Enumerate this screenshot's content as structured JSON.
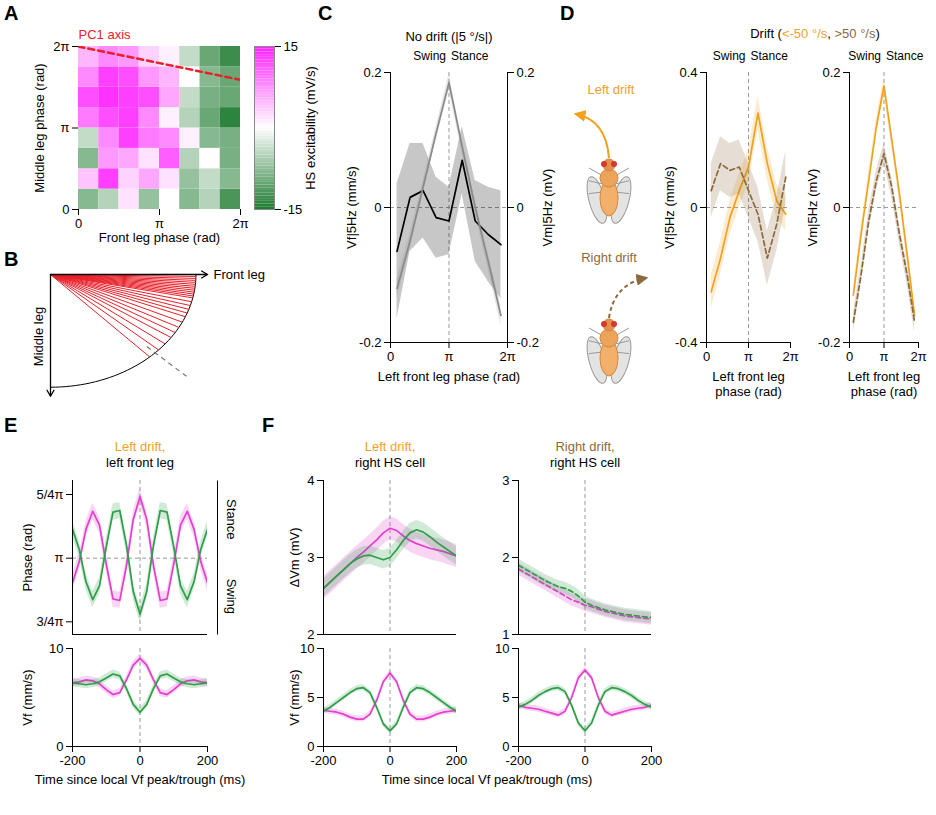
{
  "chart_data": [
    {
      "panel": "A",
      "type": "heatmap",
      "xlabel": "Front leg phase (rad)",
      "ylabel": "Middle leg phase (rad)",
      "xlim": [
        0,
        6.2832
      ],
      "ylim": [
        0,
        6.2832
      ],
      "xticks": [
        0,
        {
          "value": 3.1416,
          "label": "π"
        },
        {
          "value": 6.2832,
          "label": "2π"
        }
      ],
      "yticks": [
        0,
        {
          "value": 3.1416,
          "label": "π"
        },
        {
          "value": 6.2832,
          "label": "2π"
        }
      ],
      "cells": [
        [
          -8,
          -5,
          2,
          -7,
          0,
          -8,
          -5,
          -12
        ],
        [
          4,
          13,
          3,
          6,
          2,
          -7,
          -4,
          -8
        ],
        [
          -8,
          7,
          6,
          2,
          11,
          -5,
          0,
          -9
        ],
        [
          -4,
          8,
          13,
          9,
          8,
          1,
          -8,
          -9
        ],
        [
          9,
          12,
          13,
          8,
          1,
          -5,
          -10,
          -14
        ],
        [
          12,
          14,
          13,
          12,
          6,
          -4,
          -9,
          -10
        ],
        [
          8,
          13,
          12,
          7,
          5,
          0,
          -8,
          -10
        ],
        [
          5,
          8,
          7,
          3,
          1,
          -4,
          -10,
          -13
        ]
      ],
      "colorbar": {
        "label": "HS excitability (mV/s)",
        "range": [
          -15,
          15
        ],
        "ticks": [
          15,
          -15
        ],
        "colors": [
          "#1e7b30",
          "#ffffff",
          "#ff22ff"
        ]
      },
      "pc1_axis": {
        "label": "PC1 axis",
        "color": "#e8202a",
        "line_style": "dashed",
        "x": [
          0,
          6.2832
        ],
        "y": [
          6.2832,
          5.0
        ]
      }
    },
    {
      "panel": "B",
      "type": "radial",
      "xlabel": "Front leg",
      "ylabel": "Middle leg",
      "angles": [
        1,
        2,
        3,
        4,
        5,
        6,
        7,
        8,
        9,
        10,
        11,
        12,
        14,
        16,
        18,
        20,
        22,
        25,
        28,
        31,
        34,
        38,
        42,
        47
      ],
      "reference_angle": 44,
      "color": "#e8202a",
      "tick_labels": false
    },
    {
      "panel": "C",
      "type": "line",
      "title": "No drift (|5 °/s|)",
      "phase_labels": [
        "Swing",
        "Stance"
      ],
      "xlabel": "Left front leg phase (rad)",
      "ylabel": "Vf|5Hz (mm/s)",
      "y2label": "Vm|5Hz (mV)",
      "xlim": [
        0,
        6.2832
      ],
      "xticks": [
        0,
        {
          "value": 3.1416,
          "label": "π"
        },
        {
          "value": 6.2832,
          "label": "2π"
        }
      ],
      "ylim": [
        -0.2,
        0.2
      ],
      "yticks": [
        -0.2,
        0,
        0.2
      ],
      "y2lim": [
        -0.2,
        0.2
      ],
      "y2ticks": [
        -0.2,
        0,
        0.2
      ],
      "reference_lines": {
        "x": 3.1416,
        "y": 0
      },
      "x": [
        0.35,
        1.05,
        1.75,
        2.45,
        3.1416,
        3.85,
        4.55,
        5.25,
        5.93
      ],
      "series": [
        {
          "color": "#000000",
          "values": [
            -0.065,
            0.015,
            0.025,
            -0.015,
            -0.02,
            0.07,
            -0.02,
            -0.04,
            -0.055
          ],
          "error": [
            0.1,
            0.08,
            0.07,
            0.06,
            0.05,
            0.05,
            0.06,
            0.07,
            0.08
          ]
        },
        {
          "color": "#8a8a8a",
          "axis": "y2",
          "values": [
            -0.12,
            -0.05,
            0.03,
            0.11,
            0.185,
            0.09,
            0,
            -0.08,
            -0.16
          ],
          "error": [
            0.015,
            0.012,
            0.01,
            0.01,
            0.012,
            0.01,
            0.01,
            0.012,
            0.015
          ]
        }
      ]
    },
    {
      "panel": "D",
      "type": "line",
      "title_parts": [
        {
          "text": "Drift (",
          "color": "#000000"
        },
        {
          "text": "<-50 °/s",
          "color": "#f0a21e"
        },
        {
          "text": ", ",
          "color": "#000000"
        },
        {
          "text": ">50 °/s",
          "color": "#8b6a3c"
        },
        {
          "text": ")",
          "color": "#000000"
        }
      ],
      "phase_labels": [
        "Swing",
        "Stance"
      ],
      "xlabel": "Left front leg phase (rad)",
      "ylabel": "Vf|5Hz (mm/s)",
      "xlim": [
        0,
        6.2832
      ],
      "xticks": [
        0,
        {
          "value": 3.1416,
          "label": "π"
        },
        {
          "value": 6.2832,
          "label": "2π"
        }
      ],
      "ylim": [
        -0.4,
        0.4
      ],
      "yticks": [
        -0.4,
        0,
        0.4
      ],
      "reference_lines": {
        "x": 3.1416,
        "y": 0
      },
      "x": [
        0.35,
        1.05,
        1.75,
        2.45,
        3.1416,
        3.85,
        4.55,
        5.25,
        5.93
      ],
      "series": [
        {
          "name": "Left drift",
          "color": "#f0a21e",
          "values": [
            -0.25,
            -0.15,
            -0.03,
            0.05,
            0.12,
            0.28,
            0.13,
            0.02,
            -0.02
          ],
          "error": [
            0.05,
            0.05,
            0.05,
            0.05,
            0.05,
            0.05,
            0.05,
            0.05,
            0.05
          ]
        },
        {
          "name": "Right drift",
          "color": "#8b6a3c",
          "line_style": "dashed",
          "values": [
            0.05,
            0.13,
            0.11,
            0.12,
            0.05,
            -0.02,
            -0.15,
            -0.05,
            0.09
          ],
          "error": [
            0.08,
            0.08,
            0.08,
            0.08,
            0.08,
            0.08,
            0.08,
            0.08,
            0.08
          ]
        }
      ]
    },
    {
      "type": "line",
      "phase_labels": [
        "Swing",
        "Stance"
      ],
      "xlabel": "Left front leg phase (rad)",
      "ylabel": "Vm|5Hz (mV)",
      "xlim": [
        0,
        6.2832
      ],
      "xticks": [
        0,
        {
          "value": 3.1416,
          "label": "π"
        },
        {
          "value": 6.2832,
          "label": "2π"
        }
      ],
      "ylim": [
        -0.2,
        0.2
      ],
      "yticks": [
        -0.2,
        0,
        0.2
      ],
      "reference_lines": {
        "x": 3.1416,
        "y": 0
      },
      "x": [
        0.35,
        1.05,
        1.75,
        2.45,
        3.1416,
        3.85,
        4.55,
        5.25,
        5.93
      ],
      "series": [
        {
          "color": "#f0a21e",
          "values": [
            -0.13,
            -0.04,
            0.04,
            0.12,
            0.18,
            0.1,
            0.02,
            -0.07,
            -0.16
          ],
          "error": [
            0.012,
            0.012,
            0.012,
            0.012,
            0.012,
            0.012,
            0.012,
            0.012,
            0.012
          ]
        },
        {
          "color": "#8b6a3c",
          "line_style": "dashed",
          "values": [
            -0.17,
            -0.1,
            -0.02,
            0.04,
            0.08,
            0.03,
            -0.04,
            -0.1,
            -0.17
          ],
          "error": [
            0.015,
            0.015,
            0.015,
            0.015,
            0.015,
            0.015,
            0.015,
            0.015,
            0.015
          ]
        }
      ]
    },
    {
      "panel": "E",
      "type": "line",
      "title_parts": [
        {
          "text": "Left drift,",
          "color": "#f0a21e"
        },
        {
          "text": "left front leg",
          "color": "#000000"
        }
      ],
      "ylabel": "Phase (rad)",
      "bracket_labels": [
        "Stance",
        "Swing"
      ],
      "xlim": [
        -200,
        200
      ],
      "ylim": [
        2.2,
        4.1
      ],
      "yticks": [
        {
          "value": 2.3562,
          "label": "3/4π"
        },
        {
          "value": 3.1416,
          "label": "π"
        },
        {
          "value": 3.927,
          "label": "5/4π"
        }
      ],
      "tick_labels": "y",
      "reference_lines": {
        "x": 0,
        "y": 3.1416
      },
      "x": [
        -200,
        -180,
        -160,
        -140,
        -120,
        -100,
        -80,
        -60,
        -40,
        -20,
        0,
        20,
        40,
        60,
        80,
        100,
        120,
        140,
        160,
        180,
        200
      ],
      "series": [
        {
          "color": "#e23fcf",
          "error": 0.1,
          "values": [
            2.84,
            3.1,
            3.5,
            3.72,
            3.55,
            3.07,
            2.64,
            2.62,
            3.05,
            3.62,
            3.9,
            3.62,
            3.05,
            2.62,
            2.64,
            3.07,
            3.55,
            3.72,
            3.5,
            3.1,
            2.84
          ]
        },
        {
          "color": "#2e9e48",
          "error": 0.1,
          "values": [
            3.5,
            3.25,
            2.85,
            2.63,
            2.8,
            3.28,
            3.71,
            3.73,
            3.3,
            2.73,
            2.45,
            2.73,
            3.3,
            3.73,
            3.71,
            3.28,
            2.8,
            2.63,
            2.85,
            3.25,
            3.5
          ]
        }
      ]
    },
    {
      "type": "line",
      "ylabel": "Vf (mm/s)",
      "xlabel": "Time since local Vf peak/trough (ms)",
      "xlim": [
        -200,
        200
      ],
      "xticks": [
        -200,
        0,
        200
      ],
      "ylim": [
        0,
        10
      ],
      "yticks": [
        0,
        10
      ],
      "reference_lines": {
        "x": 0
      },
      "x": [
        -200,
        -180,
        -160,
        -140,
        -120,
        -100,
        -80,
        -60,
        -40,
        -20,
        0,
        20,
        40,
        60,
        80,
        100,
        120,
        140,
        160,
        180,
        200
      ],
      "series": [
        {
          "color": "#e23fcf",
          "error": 0.4,
          "values": [
            6.5,
            6.6,
            6.8,
            6.7,
            6.4,
            5.8,
            5.3,
            5.5,
            6.8,
            8.3,
            9.0,
            8.3,
            6.8,
            5.5,
            5.3,
            5.8,
            6.4,
            6.7,
            6.8,
            6.6,
            6.5
          ]
        },
        {
          "color": "#2e9e48",
          "error": 0.4,
          "values": [
            6.5,
            6.4,
            6.3,
            6.4,
            6.6,
            7.0,
            7.4,
            7.2,
            5.9,
            4.3,
            3.5,
            4.3,
            5.9,
            7.2,
            7.4,
            7.0,
            6.6,
            6.4,
            6.3,
            6.4,
            6.5
          ]
        }
      ]
    },
    {
      "panel": "F",
      "type": "line",
      "title_parts": [
        {
          "text": "Left drift,",
          "color": "#f0a21e"
        },
        {
          "text": "right HS cell",
          "color": "#000000"
        }
      ],
      "ylabel": "ΔVm (mV)",
      "xlim": [
        -200,
        200
      ],
      "ylim": [
        2,
        4
      ],
      "yticks": [
        2,
        3,
        4
      ],
      "tick_labels": "y",
      "reference_lines": {
        "x": 0
      },
      "x": [
        -200,
        -180,
        -160,
        -140,
        -120,
        -100,
        -80,
        -60,
        -40,
        -20,
        0,
        20,
        40,
        60,
        80,
        100,
        120,
        140,
        160,
        180,
        200
      ],
      "series": [
        {
          "color": "#e23fcf",
          "error": 0.15,
          "values": [
            2.6,
            2.68,
            2.76,
            2.84,
            2.92,
            3.0,
            3.07,
            3.15,
            3.23,
            3.32,
            3.38,
            3.35,
            3.28,
            3.22,
            3.18,
            3.15,
            3.12,
            3.1,
            3.08,
            3.05,
            3.02
          ]
        },
        {
          "color": "#2e9e48",
          "error": 0.12,
          "values": [
            2.6,
            2.68,
            2.76,
            2.84,
            2.92,
            2.98,
            3.02,
            3.03,
            3.0,
            2.97,
            3.0,
            3.1,
            3.22,
            3.32,
            3.36,
            3.33,
            3.27,
            3.2,
            3.14,
            3.08,
            3.02
          ]
        }
      ]
    },
    {
      "type": "line",
      "ylabel": "Vf (mm/s)",
      "xlabel": "Time since local Vf peak/trough (ms)",
      "xlim": [
        -200,
        200
      ],
      "xticks": [
        -200,
        0,
        200
      ],
      "ylim": [
        0,
        10
      ],
      "yticks": [
        0,
        5,
        10
      ],
      "reference_lines": {
        "x": 0
      },
      "x": [
        -200,
        -180,
        -160,
        -140,
        -120,
        -100,
        -80,
        -60,
        -40,
        -20,
        0,
        20,
        40,
        60,
        80,
        100,
        120,
        140,
        160,
        180,
        200
      ],
      "series": [
        {
          "color": "#e23fcf",
          "error": 0.3,
          "values": [
            3.7,
            3.6,
            3.5,
            3.3,
            3.0,
            2.8,
            2.8,
            3.3,
            4.7,
            6.6,
            7.5,
            6.6,
            4.7,
            3.3,
            2.8,
            2.8,
            3.0,
            3.3,
            3.5,
            3.6,
            3.7
          ]
        },
        {
          "color": "#2e9e48",
          "error": 0.3,
          "values": [
            3.6,
            4.0,
            4.5,
            5.0,
            5.5,
            5.9,
            6.0,
            5.5,
            4.0,
            2.3,
            1.6,
            2.3,
            4.0,
            5.5,
            6.0,
            5.9,
            5.5,
            5.0,
            4.5,
            4.0,
            3.6
          ]
        }
      ]
    },
    {
      "type": "line",
      "title_parts": [
        {
          "text": "Right drift,",
          "color": "#8b6a3c"
        },
        {
          "text": "right HS cell",
          "color": "#000000"
        }
      ],
      "xlim": [
        -200,
        200
      ],
      "ylim": [
        1,
        3
      ],
      "yticks": [
        1,
        2,
        3
      ],
      "tick_labels": "y",
      "reference_lines": {
        "x": 0
      },
      "x": [
        -200,
        -180,
        -160,
        -140,
        -120,
        -100,
        -80,
        -60,
        -40,
        -20,
        0,
        20,
        40,
        60,
        80,
        100,
        120,
        140,
        160,
        180,
        200
      ],
      "series": [
        {
          "color": "#e23fcf",
          "line_style": "dashed",
          "error": 0.08,
          "values": [
            1.85,
            1.8,
            1.75,
            1.7,
            1.65,
            1.6,
            1.55,
            1.5,
            1.45,
            1.42,
            1.38,
            1.36,
            1.33,
            1.3,
            1.28,
            1.26,
            1.24,
            1.23,
            1.22,
            1.21,
            1.2
          ]
        },
        {
          "color": "#2e9e48",
          "line_style": "dashed",
          "error": 0.08,
          "values": [
            1.9,
            1.85,
            1.8,
            1.75,
            1.7,
            1.66,
            1.62,
            1.6,
            1.56,
            1.5,
            1.42,
            1.38,
            1.35,
            1.32,
            1.3,
            1.28,
            1.26,
            1.25,
            1.24,
            1.23,
            1.22
          ]
        }
      ]
    },
    {
      "type": "line",
      "xlim": [
        -200,
        200
      ],
      "xticks": [
        -200,
        0,
        200
      ],
      "ylim": [
        0,
        10
      ],
      "yticks": [
        0,
        5,
        10
      ],
      "reference_lines": {
        "x": 0
      },
      "x": [
        -200,
        -180,
        -160,
        -140,
        -120,
        -100,
        -80,
        -60,
        -40,
        -20,
        0,
        20,
        40,
        60,
        80,
        100,
        120,
        140,
        160,
        180,
        200
      ],
      "series": [
        {
          "color": "#e23fcf",
          "error": 0.3,
          "values": [
            4.2,
            4.0,
            3.9,
            3.8,
            3.6,
            3.4,
            3.2,
            3.6,
            5.0,
            7.0,
            7.8,
            7.0,
            5.0,
            3.6,
            3.2,
            3.4,
            3.6,
            3.8,
            3.9,
            4.0,
            4.2
          ]
        },
        {
          "color": "#2e9e48",
          "error": 0.3,
          "values": [
            4.0,
            4.3,
            4.7,
            5.2,
            5.6,
            5.9,
            6.0,
            5.6,
            4.2,
            2.4,
            1.6,
            2.4,
            4.2,
            5.6,
            6.0,
            5.9,
            5.6,
            5.2,
            4.7,
            4.3,
            4.0
          ]
        }
      ]
    }
  ]
}
